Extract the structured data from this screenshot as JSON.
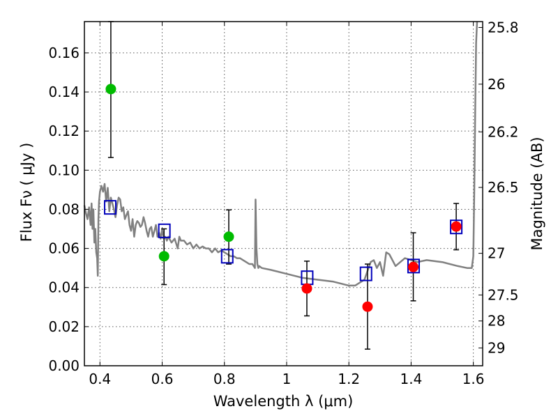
{
  "chart_data": {
    "type": "scatter",
    "xlabel": "Wavelength  λ (μm)",
    "ylabel": "Flux  Fν  ( μJy )",
    "y2label": "Magnitude (AB)",
    "xlim": [
      0.35,
      1.63
    ],
    "ylim": [
      0.0,
      0.176
    ],
    "grid": true,
    "colors": {
      "green_points": "#00bb00",
      "red_points": "#ff0000",
      "model_boxes": "#0000bb",
      "spectrum": "#808080",
      "errorbar": "#000000"
    },
    "x_ticks": [
      {
        "value": 0.4,
        "label": "0.4"
      },
      {
        "value": 0.6,
        "label": "0.6"
      },
      {
        "value": 0.8,
        "label": "0.8"
      },
      {
        "value": 1.0,
        "label": "1"
      },
      {
        "value": 1.2,
        "label": "1.2"
      },
      {
        "value": 1.4,
        "label": "1.4"
      },
      {
        "value": 1.6,
        "label": "1.6"
      }
    ],
    "y_ticks": [
      {
        "value": 0.0,
        "label": "0.00"
      },
      {
        "value": 0.02,
        "label": "0.02"
      },
      {
        "value": 0.04,
        "label": "0.04"
      },
      {
        "value": 0.06,
        "label": "0.06"
      },
      {
        "value": 0.08,
        "label": "0.08"
      },
      {
        "value": 0.1,
        "label": "0.10"
      },
      {
        "value": 0.12,
        "label": "0.12"
      },
      {
        "value": 0.14,
        "label": "0.14"
      },
      {
        "value": 0.16,
        "label": "0.16"
      }
    ],
    "y2_ticks": [
      {
        "flux": 0.173,
        "label": "25.8"
      },
      {
        "flux": 0.144,
        "label": "26"
      },
      {
        "flux": 0.1196,
        "label": "26.2"
      },
      {
        "flux": 0.0912,
        "label": "26.5"
      },
      {
        "flux": 0.0575,
        "label": "27"
      },
      {
        "flux": 0.0362,
        "label": "27.5"
      },
      {
        "flux": 0.0229,
        "label": "28"
      },
      {
        "flux": 0.0091,
        "label": "29"
      }
    ],
    "series": [
      {
        "kind": "observed-green",
        "points": [
          {
            "x": 0.435,
            "y": 0.1415,
            "err_low": 0.1065,
            "err_high": 0.176
          },
          {
            "x": 0.606,
            "y": 0.056,
            "err_low": 0.0415,
            "err_high": 0.07
          },
          {
            "x": 0.814,
            "y": 0.066,
            "err_low": 0.052,
            "err_high": 0.0797
          }
        ]
      },
      {
        "kind": "observed-red",
        "points": [
          {
            "x": 1.065,
            "y": 0.0395,
            "err_low": 0.0255,
            "err_high": 0.0535
          },
          {
            "x": 1.26,
            "y": 0.0302,
            "err_low": 0.0085,
            "err_high": 0.052
          },
          {
            "x": 1.407,
            "y": 0.0505,
            "err_low": 0.0332,
            "err_high": 0.068
          },
          {
            "x": 1.545,
            "y": 0.0712,
            "err_low": 0.0593,
            "err_high": 0.083
          }
        ]
      },
      {
        "kind": "model-photometry",
        "points": [
          {
            "x": 0.433,
            "y": 0.081
          },
          {
            "x": 0.607,
            "y": 0.069
          },
          {
            "x": 0.809,
            "y": 0.056
          },
          {
            "x": 1.066,
            "y": 0.045
          },
          {
            "x": 1.255,
            "y": 0.047
          },
          {
            "x": 1.408,
            "y": 0.051
          },
          {
            "x": 1.545,
            "y": 0.071
          }
        ]
      },
      {
        "kind": "model-spectrum",
        "x": [
          0.35,
          0.355,
          0.36,
          0.365,
          0.37,
          0.373,
          0.376,
          0.379,
          0.382,
          0.385,
          0.388,
          0.391,
          0.393,
          0.395,
          0.397,
          0.4,
          0.405,
          0.41,
          0.415,
          0.42,
          0.425,
          0.43,
          0.435,
          0.44,
          0.445,
          0.45,
          0.455,
          0.46,
          0.465,
          0.47,
          0.475,
          0.48,
          0.485,
          0.49,
          0.495,
          0.5,
          0.505,
          0.51,
          0.515,
          0.52,
          0.525,
          0.53,
          0.535,
          0.54,
          0.545,
          0.55,
          0.555,
          0.56,
          0.565,
          0.57,
          0.575,
          0.58,
          0.585,
          0.59,
          0.595,
          0.6,
          0.605,
          0.61,
          0.615,
          0.62,
          0.63,
          0.64,
          0.65,
          0.655,
          0.66,
          0.67,
          0.68,
          0.69,
          0.7,
          0.71,
          0.72,
          0.73,
          0.74,
          0.75,
          0.76,
          0.77,
          0.78,
          0.79,
          0.8,
          0.81,
          0.82,
          0.83,
          0.84,
          0.85,
          0.86,
          0.87,
          0.88,
          0.89,
          0.898,
          0.9,
          0.903,
          0.906,
          0.909,
          0.912,
          0.92,
          0.95,
          1.0,
          1.05,
          1.1,
          1.15,
          1.2,
          1.22,
          1.25,
          1.27,
          1.28,
          1.29,
          1.3,
          1.31,
          1.32,
          1.33,
          1.35,
          1.38,
          1.4,
          1.42,
          1.45,
          1.5,
          1.55,
          1.58,
          1.595,
          1.6,
          1.603,
          1.606,
          1.609,
          1.612
        ],
        "y": [
          0.082,
          0.078,
          0.075,
          0.081,
          0.072,
          0.083,
          0.07,
          0.08,
          0.063,
          0.07,
          0.058,
          0.055,
          0.046,
          0.075,
          0.084,
          0.089,
          0.092,
          0.089,
          0.093,
          0.084,
          0.091,
          0.079,
          0.086,
          0.083,
          0.08,
          0.076,
          0.082,
          0.086,
          0.085,
          0.079,
          0.081,
          0.075,
          0.077,
          0.079,
          0.072,
          0.069,
          0.075,
          0.066,
          0.072,
          0.074,
          0.073,
          0.071,
          0.072,
          0.076,
          0.073,
          0.069,
          0.066,
          0.07,
          0.071,
          0.066,
          0.069,
          0.072,
          0.066,
          0.068,
          0.065,
          0.07,
          0.065,
          0.066,
          0.064,
          0.066,
          0.063,
          0.065,
          0.06,
          0.066,
          0.064,
          0.064,
          0.062,
          0.063,
          0.06,
          0.062,
          0.06,
          0.061,
          0.06,
          0.06,
          0.058,
          0.06,
          0.058,
          0.059,
          0.058,
          0.057,
          0.056,
          0.056,
          0.055,
          0.055,
          0.054,
          0.053,
          0.052,
          0.052,
          0.05,
          0.085,
          0.06,
          0.052,
          0.05,
          0.051,
          0.05,
          0.049,
          0.047,
          0.045,
          0.044,
          0.043,
          0.041,
          0.041,
          0.044,
          0.053,
          0.054,
          0.05,
          0.053,
          0.046,
          0.058,
          0.057,
          0.051,
          0.055,
          0.054,
          0.053,
          0.054,
          0.053,
          0.051,
          0.05,
          0.05,
          0.056,
          0.09,
          0.13,
          0.165,
          0.176
        ]
      }
    ]
  }
}
